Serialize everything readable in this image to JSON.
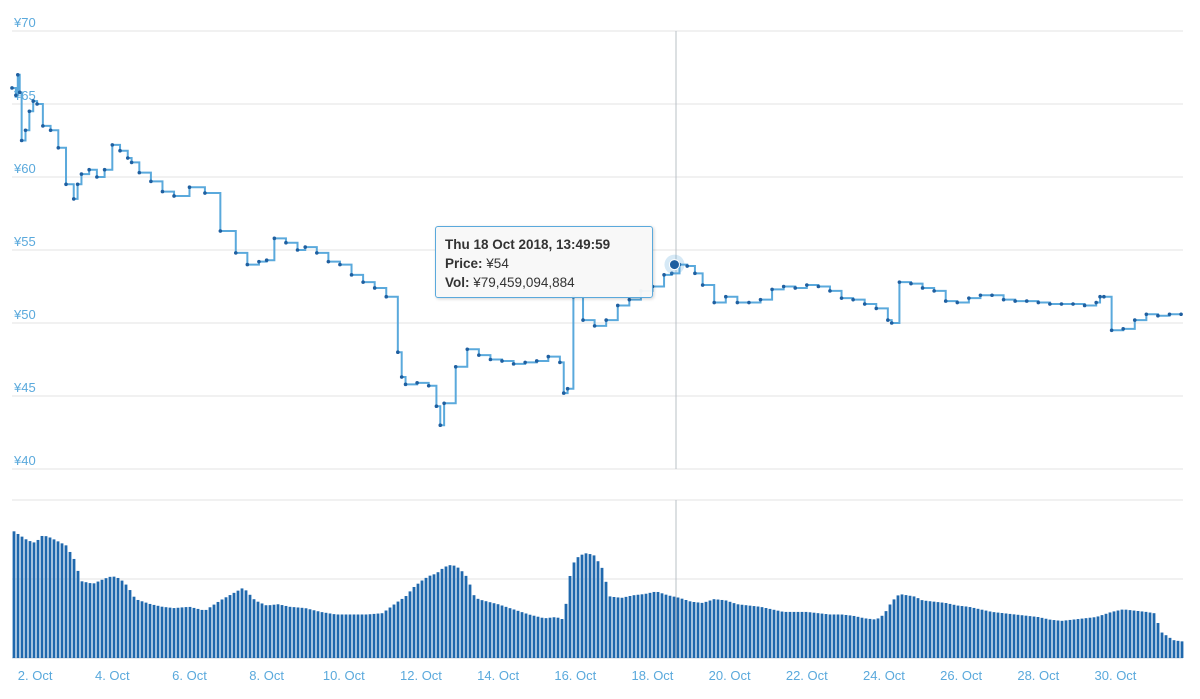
{
  "chart_data": {
    "type": "line",
    "price_panel": {
      "yticks": [
        "¥70",
        "¥65",
        "¥60",
        "¥55",
        "¥50",
        "¥45",
        "¥40"
      ],
      "ytick_values": [
        70,
        65,
        60,
        55,
        50,
        45,
        40
      ],
      "ylim": [
        40,
        70
      ],
      "series": [
        {
          "x": [
            1.4,
            1.5,
            1.55,
            1.6,
            1.65,
            1.75,
            1.85,
            1.95,
            2.05,
            2.2,
            2.4,
            2.6,
            2.8,
            3.0,
            3.1,
            3.2,
            3.4,
            3.6,
            3.8,
            4.0,
            4.2,
            4.4,
            4.5,
            4.7,
            5.0,
            5.3,
            5.6,
            6.0,
            6.4,
            6.8,
            7.2,
            7.5,
            7.8,
            8.0,
            8.2,
            8.5,
            8.8,
            9.0,
            9.3,
            9.6,
            9.9,
            10.2,
            10.5,
            10.8,
            11.1,
            11.4,
            11.5,
            11.6,
            11.9,
            12.2,
            12.4,
            12.5,
            12.6,
            12.9,
            13.2,
            13.5,
            13.8,
            14.1,
            14.4,
            14.7,
            15.0,
            15.3,
            15.6,
            15.7,
            15.8,
            15.95,
            16.2,
            16.5,
            16.8,
            17.1,
            17.4,
            17.7,
            18.0,
            18.3,
            18.5,
            18.7,
            18.9,
            19.1,
            19.3,
            19.6,
            19.9,
            20.2,
            20.5,
            20.8,
            21.1,
            21.4,
            21.7,
            22.0,
            22.3,
            22.6,
            22.9,
            23.2,
            23.5,
            23.8,
            24.1,
            24.2,
            24.4,
            24.7,
            25.0,
            25.3,
            25.6,
            25.9,
            26.2,
            26.5,
            26.8,
            27.1,
            27.4,
            27.7,
            28.0,
            28.3,
            28.6,
            28.9,
            29.2,
            29.5,
            29.6,
            29.7,
            29.9,
            30.2,
            30.5,
            30.8,
            31.1,
            31.4,
            31.7
          ],
          "values": [
            66.1,
            65.6,
            67.0,
            65.8,
            62.5,
            63.2,
            64.5,
            65.2,
            65.0,
            63.5,
            63.2,
            62.0,
            59.5,
            58.5,
            59.5,
            60.2,
            60.5,
            60.0,
            60.5,
            62.2,
            61.8,
            61.3,
            61.0,
            60.3,
            59.7,
            59.0,
            58.7,
            59.3,
            58.9,
            56.3,
            54.8,
            54.0,
            54.2,
            54.3,
            55.8,
            55.5,
            55.0,
            55.2,
            54.8,
            54.2,
            54.0,
            53.3,
            52.8,
            52.4,
            51.8,
            48.0,
            46.3,
            45.8,
            45.9,
            45.7,
            44.3,
            43.0,
            44.5,
            47.0,
            48.2,
            47.8,
            47.5,
            47.4,
            47.2,
            47.3,
            47.4,
            47.7,
            47.3,
            45.2,
            45.5,
            51.8,
            50.2,
            49.8,
            50.2,
            51.2,
            51.6,
            52.2,
            52.5,
            53.3,
            53.4,
            54.0,
            53.9,
            53.4,
            52.6,
            51.4,
            51.8,
            51.4,
            51.4,
            51.6,
            52.3,
            52.5,
            52.4,
            52.6,
            52.5,
            52.2,
            51.7,
            51.6,
            51.3,
            51.0,
            50.2,
            50.0,
            52.8,
            52.7,
            52.4,
            52.2,
            51.5,
            51.4,
            51.7,
            51.9,
            51.9,
            51.6,
            51.5,
            51.5,
            51.4,
            51.3,
            51.3,
            51.3,
            51.2,
            51.4,
            51.8,
            51.8,
            49.5,
            49.6,
            50.2,
            50.6,
            50.5,
            50.6,
            50.6
          ]
        }
      ],
      "highlight": {
        "x": 18.57,
        "y": 54
      }
    },
    "volume_panel": {
      "x": [
        1.4,
        1.6,
        1.8,
        2.0,
        2.2,
        2.4,
        2.6,
        2.8,
        3.0,
        3.2,
        3.5,
        3.8,
        4.0,
        4.2,
        4.4,
        4.6,
        4.8,
        5.0,
        5.3,
        5.6,
        6.0,
        6.4,
        6.8,
        7.1,
        7.4,
        7.7,
        8.0,
        8.3,
        8.6,
        9.0,
        9.4,
        9.8,
        10.2,
        10.6,
        11.0,
        11.4,
        11.6,
        11.8,
        12.0,
        12.2,
        12.4,
        12.6,
        12.8,
        13.0,
        13.2,
        13.4,
        13.6,
        14.0,
        14.4,
        14.8,
        15.2,
        15.5,
        15.7,
        15.9,
        16.1,
        16.3,
        16.5,
        16.7,
        16.9,
        17.2,
        17.5,
        17.8,
        18.1,
        18.4,
        18.7,
        19.0,
        19.3,
        19.6,
        19.9,
        20.2,
        20.5,
        20.8,
        21.1,
        21.4,
        21.7,
        22.0,
        22.3,
        22.6,
        22.9,
        23.2,
        23.5,
        23.8,
        24.0,
        24.2,
        24.4,
        24.6,
        24.8,
        25.0,
        25.3,
        25.6,
        25.9,
        26.2,
        26.5,
        26.8,
        27.1,
        27.4,
        27.7,
        28.0,
        28.3,
        28.6,
        28.9,
        29.2,
        29.5,
        29.7,
        29.9,
        30.2,
        30.5,
        30.8,
        31.0,
        31.2,
        31.5,
        31.7
      ],
      "values": [
        100,
        96,
        92,
        90,
        96,
        94,
        91,
        88,
        78,
        60,
        58,
        62,
        64,
        62,
        56,
        46,
        44,
        42,
        40,
        39,
        40,
        37,
        45,
        50,
        55,
        45,
        41,
        42,
        40,
        39,
        36,
        34,
        34,
        34,
        35,
        44,
        48,
        55,
        60,
        64,
        66,
        71,
        73,
        70,
        63,
        47,
        45,
        42,
        38,
        34,
        31,
        32,
        30,
        72,
        80,
        82,
        80,
        70,
        48,
        47,
        49,
        50,
        52,
        49,
        47,
        44,
        43,
        46,
        45,
        42,
        41,
        40,
        38,
        36,
        36,
        36,
        35,
        34,
        34,
        33,
        31,
        30,
        34,
        44,
        50,
        49,
        48,
        45,
        44,
        43,
        41,
        40,
        38,
        36,
        35,
        34,
        33,
        32,
        30,
        29,
        30,
        31,
        32,
        34,
        36,
        38,
        37,
        36,
        35,
        20,
        14,
        13
      ]
    },
    "x_ticks": [
      "2. Oct",
      "4. Oct",
      "6. Oct",
      "8. Oct",
      "10. Oct",
      "12. Oct",
      "14. Oct",
      "16. Oct",
      "18. Oct",
      "20. Oct",
      "22. Oct",
      "24. Oct",
      "26. Oct",
      "28. Oct",
      "30. Oct"
    ],
    "x_tick_values": [
      2,
      4,
      6,
      8,
      10,
      12,
      14,
      16,
      18,
      20,
      22,
      24,
      26,
      28,
      30
    ],
    "xlim": [
      1.4,
      31.75
    ],
    "colors": {
      "line": "#5aa9dc",
      "marker": "#1f5fa0",
      "volume": "#1f68ad",
      "axis_text": "#5aa9dc",
      "tooltip_border": "#5aa9dc"
    }
  },
  "tooltip": {
    "date": "Thu 18 Oct 2018, 13:49:59",
    "price_label": "Price:",
    "price_value": "¥54",
    "vol_label": "Vol:",
    "vol_value": "¥79,459,094,884"
  }
}
